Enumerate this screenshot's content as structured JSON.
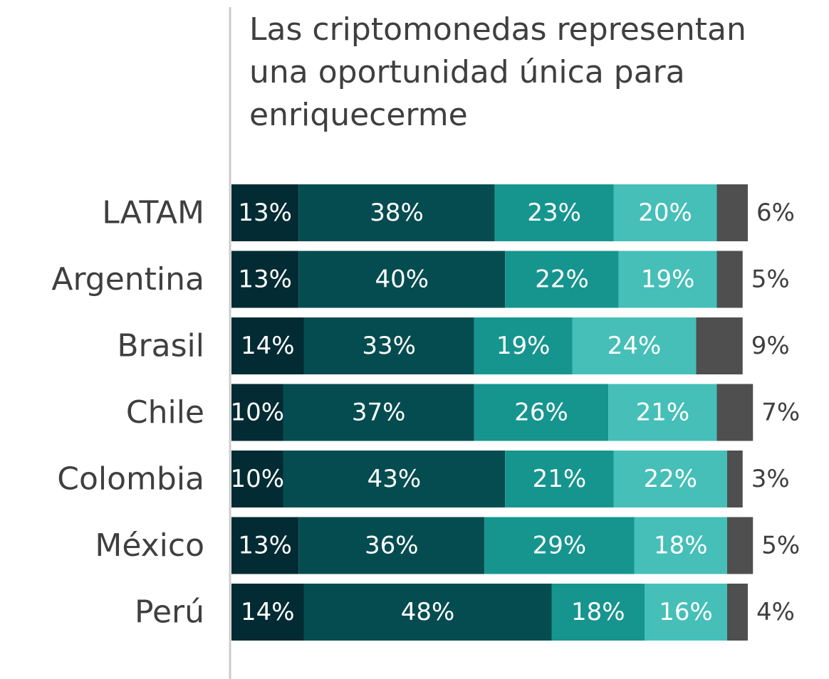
{
  "chart_data": {
    "type": "stacked_bar_horizontal",
    "title": "Las criptomonedas representan\nuna oportunidad única para\nenriquecerme",
    "categories": [
      "LATAM",
      "Argentina",
      "Brasil",
      "Chile",
      "Colombia",
      "México",
      "Perú"
    ],
    "xlim": [
      0,
      100
    ],
    "series": [
      {
        "color": "#022b33",
        "values": [
          13,
          13,
          14,
          10,
          10,
          13,
          14
        ],
        "value_labels": [
          "13%",
          "13%",
          "14%",
          "10%",
          "10%",
          "13%",
          "14%"
        ]
      },
      {
        "color": "#044c50",
        "values": [
          38,
          40,
          33,
          37,
          43,
          36,
          48
        ],
        "value_labels": [
          "38%",
          "40%",
          "33%",
          "37%",
          "43%",
          "36%",
          "48%"
        ]
      },
      {
        "color": "#16958f",
        "values": [
          23,
          22,
          19,
          26,
          21,
          29,
          18
        ],
        "value_labels": [
          "23%",
          "22%",
          "19%",
          "26%",
          "21%",
          "29%",
          "18%"
        ]
      },
      {
        "color": "#45bfb8",
        "values": [
          20,
          19,
          24,
          21,
          22,
          18,
          16
        ],
        "value_labels": [
          "20%",
          "19%",
          "24%",
          "21%",
          "22%",
          "18%",
          "16%"
        ]
      },
      {
        "color": "#4f4f4f",
        "values": [
          6,
          5,
          9,
          7,
          3,
          5,
          4
        ],
        "value_labels": [
          "6%",
          "5%",
          "9%",
          "7%",
          "3%",
          "5%",
          "4%"
        ]
      }
    ]
  }
}
